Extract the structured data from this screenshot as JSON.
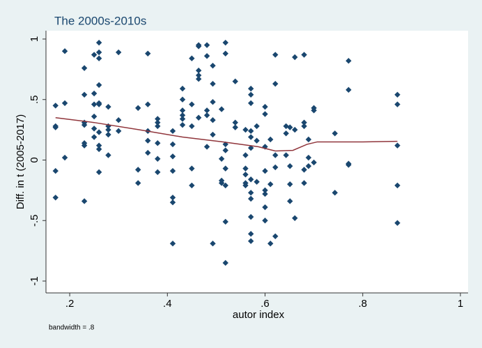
{
  "chart_data": {
    "type": "scatter",
    "title": "The 2000s-2010s",
    "x_label": "autor index",
    "y_label": "Diff. in t (2005-2017)",
    "note": "bandwidth = .8",
    "xlim": [
      0.1514,
      1.0157
    ],
    "ylim": [
      -1.098,
      1.069
    ],
    "xticks": [
      {
        "value": 0.2,
        "label": ".2"
      },
      {
        "value": 0.4,
        "label": ".4"
      },
      {
        "value": 0.6,
        "label": ".6"
      },
      {
        "value": 0.8,
        "label": ".8"
      },
      1
    ],
    "yticks": [
      {
        "value": -1,
        "label": "-1"
      },
      {
        "value": -0.5,
        "label": "-.5"
      },
      0,
      {
        "value": 0.5,
        "label": ".5"
      },
      1
    ],
    "grid": false,
    "series": [
      {
        "type": "scatter",
        "color": "#1a476f",
        "x": [
          0.171,
          0.171,
          0.171,
          0.171,
          0.171,
          0.19,
          0.19,
          0.19,
          0.23,
          0.23,
          0.23,
          0.23,
          0.23,
          0.23,
          0.23,
          0.25,
          0.25,
          0.25,
          0.25,
          0.25,
          0.25,
          0.26,
          0.26,
          0.26,
          0.26,
          0.26,
          0.26,
          0.26,
          0.26,
          0.26,
          0.26,
          0.279,
          0.279,
          0.279,
          0.279,
          0.279,
          0.3,
          0.3,
          0.3,
          0.34,
          0.34,
          0.34,
          0.36,
          0.36,
          0.36,
          0.36,
          0.36,
          0.38,
          0.38,
          0.38,
          0.38,
          0.38,
          0.38,
          0.411,
          0.411,
          0.411,
          0.411,
          0.411,
          0.411,
          0.411,
          0.431,
          0.431,
          0.431,
          0.431,
          0.431,
          0.431,
          0.45,
          0.45,
          0.45,
          0.45,
          0.45,
          0.464,
          0.464,
          0.464,
          0.464,
          0.464,
          0.464,
          0.481,
          0.481,
          0.481,
          0.481,
          0.481,
          0.493,
          0.493,
          0.493,
          0.493,
          0.493,
          0.493,
          0.511,
          0.511,
          0.511,
          0.511,
          0.519,
          0.519,
          0.519,
          0.519,
          0.519,
          0.519,
          0.519,
          0.519,
          0.539,
          0.539,
          0.539,
          0.56,
          0.56,
          0.56,
          0.56,
          0.56,
          0.56,
          0.571,
          0.571,
          0.571,
          0.571,
          0.571,
          0.571,
          0.571,
          0.571,
          0.571,
          0.571,
          0.571,
          0.571,
          0.583,
          0.583,
          0.583,
          0.6,
          0.6,
          0.6,
          0.6,
          0.6,
          0.6,
          0.6,
          0.6,
          0.611,
          0.611,
          0.611,
          0.621,
          0.621,
          0.621,
          0.621,
          0.621,
          0.643,
          0.643,
          0.643,
          0.651,
          0.651,
          0.651,
          0.651,
          0.661,
          0.661,
          0.661,
          0.68,
          0.68,
          0.68,
          0.68,
          0.68,
          0.689,
          0.689,
          0.689,
          0.7,
          0.7,
          0.7,
          0.743,
          0.743,
          0.771,
          0.771,
          0.771,
          0.771,
          0.871,
          0.871,
          0.871,
          0.871,
          0.871
        ],
        "values": [
          0.45,
          0.28,
          0.27,
          -0.09,
          -0.31,
          0.9,
          0.47,
          0.02,
          0.76,
          0.54,
          0.31,
          0.29,
          0.14,
          0.12,
          -0.34,
          0.87,
          0.55,
          0.46,
          0.36,
          0.26,
          0.19,
          0.97,
          0.89,
          0.84,
          0.62,
          0.47,
          0.46,
          0.23,
          0.12,
          0.09,
          -0.1,
          0.44,
          0.28,
          0.25,
          0.21,
          0.04,
          0.89,
          0.33,
          0.24,
          0.43,
          -0.08,
          -0.19,
          0.88,
          0.46,
          0.24,
          0.16,
          0.06,
          0.34,
          0.31,
          0.28,
          0.14,
          0.01,
          -0.1,
          0.24,
          0.13,
          0.03,
          -0.09,
          -0.31,
          -0.35,
          -0.69,
          0.59,
          0.5,
          0.41,
          0.37,
          0.34,
          0.29,
          0.84,
          0.46,
          0.28,
          -0.07,
          -0.21,
          0.95,
          0.94,
          0.74,
          0.7,
          0.67,
          0.35,
          0.95,
          0.86,
          0.41,
          0.37,
          0.11,
          0.78,
          0.63,
          0.48,
          0.33,
          0.21,
          -0.69,
          0.42,
          0.01,
          -0.17,
          -0.19,
          0.97,
          0.88,
          0.13,
          0.08,
          -0.07,
          -0.21,
          -0.51,
          -0.85,
          0.65,
          0.31,
          0.27,
          0.25,
          0.04,
          -0.07,
          -0.12,
          -0.19,
          -0.21,
          0.59,
          0.54,
          0.47,
          0.24,
          0.19,
          0.1,
          -0.16,
          -0.27,
          -0.32,
          -0.47,
          -0.61,
          -0.67,
          0.28,
          0.16,
          -0.18,
          0.44,
          0.38,
          0.11,
          -0.09,
          -0.25,
          -0.28,
          -0.39,
          -0.5,
          0.17,
          -0.2,
          -0.69,
          0.87,
          0.63,
          0.04,
          -0.06,
          -0.63,
          0.28,
          0.22,
          0.04,
          0.27,
          -0.05,
          -0.2,
          -0.34,
          0.85,
          0.25,
          -0.48,
          0.87,
          0.31,
          0.28,
          -0.08,
          -0.19,
          0.17,
          0.02,
          -0.05,
          0.43,
          0.41,
          -0.02,
          0.22,
          -0.27,
          0.82,
          0.58,
          -0.03,
          -0.04,
          0.54,
          0.46,
          0.12,
          -0.21,
          -0.52
        ]
      },
      {
        "type": "line",
        "color": "#90353b",
        "x": [
          0.171,
          0.25,
          0.343,
          0.431,
          0.514,
          0.586,
          0.621,
          0.657,
          0.686,
          0.707,
          0.8,
          0.871
        ],
        "values": [
          0.35,
          0.31,
          0.25,
          0.19,
          0.15,
          0.11,
          0.075,
          0.08,
          0.13,
          0.15,
          0.15,
          0.155
        ]
      }
    ]
  }
}
